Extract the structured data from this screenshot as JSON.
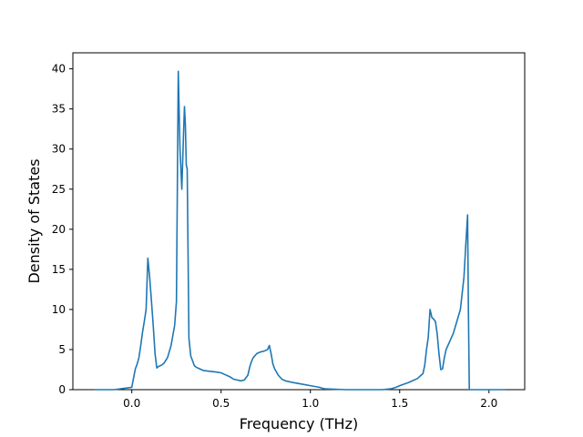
{
  "chart_data": {
    "type": "line",
    "title": "",
    "xlabel": "Frequency (THz)",
    "ylabel": "Density of States",
    "xlim": [
      -0.33,
      2.2
    ],
    "ylim": [
      0,
      42
    ],
    "xticks": [
      0.0,
      0.5,
      1.0,
      1.5,
      2.0
    ],
    "xtick_labels": [
      "0.0",
      "0.5",
      "1.0",
      "1.5",
      "2.0"
    ],
    "yticks": [
      0,
      5,
      10,
      15,
      20,
      25,
      30,
      35,
      40
    ],
    "ytick_labels": [
      "0",
      "5",
      "10",
      "15",
      "20",
      "25",
      "30",
      "35",
      "40"
    ],
    "grid": false,
    "line_color": "#1f77b4",
    "series": [
      {
        "x": [
          -0.21,
          -0.1,
          0.0,
          0.01,
          0.02,
          0.03,
          0.04,
          0.05,
          0.06,
          0.07,
          0.08,
          0.09,
          0.1,
          0.11,
          0.12,
          0.13,
          0.14,
          0.15,
          0.16,
          0.17,
          0.18,
          0.2,
          0.22,
          0.24,
          0.25,
          0.26,
          0.27,
          0.28,
          0.29,
          0.295,
          0.3,
          0.305,
          0.31,
          0.32,
          0.33,
          0.34,
          0.35,
          0.36,
          0.38,
          0.4,
          0.43,
          0.47,
          0.5,
          0.52,
          0.55,
          0.57,
          0.59,
          0.61,
          0.63,
          0.65,
          0.66,
          0.67,
          0.68,
          0.7,
          0.72,
          0.74,
          0.76,
          0.77,
          0.78,
          0.79,
          0.8,
          0.82,
          0.84,
          0.86,
          0.88,
          0.9,
          0.95,
          1.0,
          1.05,
          1.08,
          1.2,
          1.3,
          1.4,
          1.45,
          1.48,
          1.5,
          1.55,
          1.6,
          1.62,
          1.63,
          1.64,
          1.65,
          1.66,
          1.67,
          1.68,
          1.69,
          1.7,
          1.71,
          1.72,
          1.73,
          1.74,
          1.75,
          1.76,
          1.77,
          1.78,
          1.8,
          1.82,
          1.84,
          1.86,
          1.87,
          1.88,
          1.885,
          1.89,
          1.9,
          1.905,
          1.95,
          2.0,
          2.09
        ],
        "y": [
          0,
          0,
          0.3,
          1.5,
          2.6,
          3.2,
          4.0,
          5.5,
          7.2,
          8.5,
          10.0,
          16.4,
          14.0,
          11.0,
          8.0,
          4.5,
          2.7,
          2.9,
          3.0,
          3.1,
          3.3,
          4.0,
          5.5,
          8.0,
          11.0,
          39.7,
          30.0,
          25.0,
          32.0,
          35.3,
          33.0,
          28.0,
          27.5,
          6.4,
          4.2,
          3.6,
          3.0,
          2.8,
          2.6,
          2.4,
          2.3,
          2.2,
          2.1,
          1.9,
          1.6,
          1.3,
          1.2,
          1.1,
          1.2,
          1.8,
          2.8,
          3.5,
          4.0,
          4.5,
          4.7,
          4.8,
          5.0,
          5.5,
          4.5,
          3.2,
          2.6,
          1.8,
          1.3,
          1.1,
          1.0,
          0.9,
          0.7,
          0.5,
          0.3,
          0.1,
          0.0,
          0.0,
          0.0,
          0.1,
          0.3,
          0.5,
          0.9,
          1.4,
          1.8,
          2.0,
          3.0,
          5.0,
          6.5,
          10.0,
          9.0,
          8.8,
          8.5,
          7.0,
          4.5,
          2.5,
          2.6,
          4.0,
          5.0,
          5.5,
          6.0,
          7.0,
          8.5,
          10.0,
          14.0,
          18.0,
          21.8,
          10.0,
          0.0,
          0.0,
          0.0,
          0.0,
          0.0,
          0.0
        ]
      }
    ]
  }
}
